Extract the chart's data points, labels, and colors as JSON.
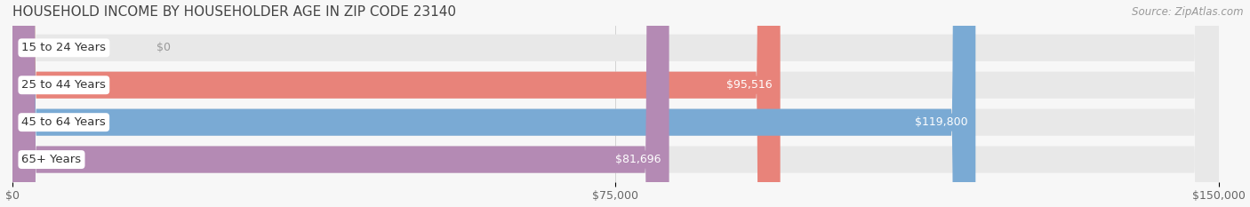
{
  "title": "HOUSEHOLD INCOME BY HOUSEHOLDER AGE IN ZIP CODE 23140",
  "source": "Source: ZipAtlas.com",
  "categories": [
    "15 to 24 Years",
    "25 to 44 Years",
    "45 to 64 Years",
    "65+ Years"
  ],
  "values": [
    0,
    95516,
    119800,
    81696
  ],
  "value_labels": [
    "$0",
    "$95,516",
    "$119,800",
    "$81,696"
  ],
  "bar_colors": [
    "#f5c49a",
    "#e8837a",
    "#7aaad4",
    "#b48ab4"
  ],
  "value_label_colors": [
    "#c8955a",
    "#e8837a",
    "#7aaad4",
    "#b48ab4"
  ],
  "xlim": [
    0,
    150000
  ],
  "xtick_values": [
    0,
    75000,
    150000
  ],
  "xtick_labels": [
    "$0",
    "$75,000",
    "$150,000"
  ],
  "background_color": "#f7f7f7",
  "bar_bg_color": "#e8e8e8",
  "title_fontsize": 11,
  "source_fontsize": 8.5,
  "label_fontsize": 9.5,
  "value_fontsize": 9,
  "tick_fontsize": 9,
  "bar_height": 0.72,
  "figsize": [
    14.06,
    2.33
  ],
  "dpi": 100
}
